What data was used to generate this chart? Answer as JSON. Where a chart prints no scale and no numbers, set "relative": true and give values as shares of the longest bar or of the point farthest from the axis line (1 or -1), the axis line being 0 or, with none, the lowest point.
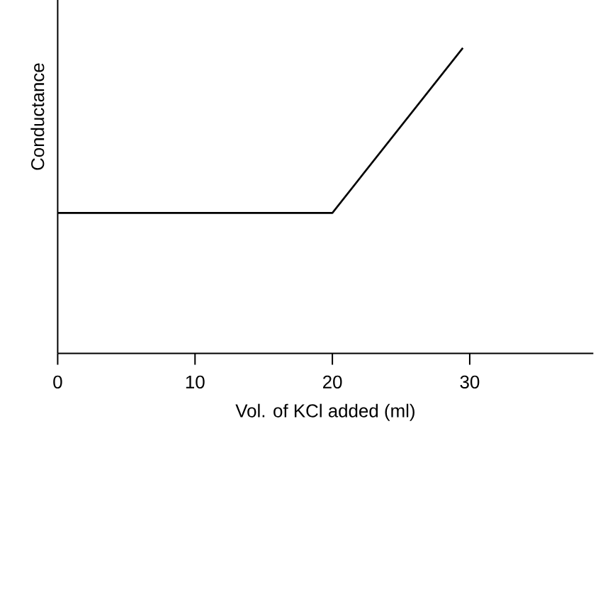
{
  "chart_data": {
    "type": "line",
    "relative": true,
    "xlabel": "Vol. of KCl added (ml)",
    "ylabel": "Conductance",
    "x": [
      0,
      20,
      29.5
    ],
    "values": [
      0.46,
      0.46,
      1
    ],
    "color": "#000000",
    "xlim": [
      0,
      39
    ],
    "xticks": [
      0,
      10,
      20,
      30
    ],
    "grid": false,
    "marker": "none",
    "line_style": "solid"
  }
}
